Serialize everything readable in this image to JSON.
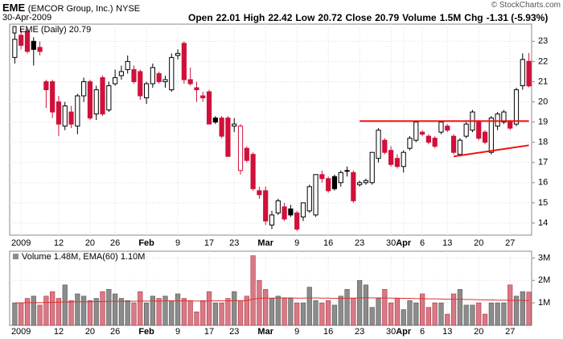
{
  "chart_data": {
    "type": "candlestick",
    "symbol": "EME",
    "company": "(EMCOR Group, Inc.)",
    "exchange": "NYSE",
    "date": "30-Apr-2009",
    "copyright": "© StockCharts.com",
    "quote": [
      {
        "label": "Open",
        "value": "22.01"
      },
      {
        "label": "High",
        "value": "22.42"
      },
      {
        "label": "Low",
        "value": "20.72"
      },
      {
        "label": "Close",
        "value": "20.79"
      },
      {
        "label": "Volume",
        "value": "1.5M"
      },
      {
        "label": "Chg",
        "value": "-1.31 (-5.93%)"
      }
    ],
    "legend": "EME (Daily) 20.79",
    "volume_legend": "Volume 1.48M, EMA(60) 1.10M",
    "categories": [
      null,
      "2009",
      null,
      null,
      null,
      null,
      null,
      "12",
      null,
      null,
      null,
      null,
      "20",
      null,
      null,
      null,
      "26",
      null,
      null,
      null,
      null,
      "Feb",
      null,
      null,
      null,
      null,
      "9",
      null,
      null,
      null,
      null,
      "17",
      null,
      null,
      null,
      "23",
      null,
      null,
      null,
      null,
      "Mar",
      null,
      null,
      null,
      null,
      "9",
      null,
      null,
      null,
      null,
      "16",
      null,
      null,
      null,
      null,
      "23",
      null,
      null,
      null,
      null,
      "30",
      null,
      "Apr",
      null,
      null,
      "6",
      null,
      null,
      null,
      "13",
      null,
      null,
      null,
      null,
      "20",
      null,
      null,
      null,
      null,
      "27",
      null,
      null,
      null
    ],
    "ohlc": [
      [
        22.2,
        23.4,
        21.9,
        23.1
      ],
      [
        23.3,
        23.6,
        22.6,
        22.8
      ],
      [
        23.5,
        23.6,
        22.4,
        22.5
      ],
      [
        23.0,
        23.2,
        21.8,
        22.6
      ],
      [
        22.7,
        23.0,
        22.3,
        22.5
      ],
      [
        21.0,
        21.1,
        19.7,
        20.6
      ],
      [
        21.0,
        21.1,
        19.2,
        19.5
      ],
      [
        20.0,
        20.3,
        18.3,
        18.9
      ],
      [
        18.8,
        20.0,
        18.6,
        19.8
      ],
      [
        19.5,
        19.8,
        18.7,
        18.9
      ],
      [
        18.8,
        20.4,
        18.4,
        20.3
      ],
      [
        20.3,
        21.2,
        20.0,
        21.0
      ],
      [
        21.0,
        21.1,
        19.1,
        19.2
      ],
      [
        19.4,
        20.8,
        19.1,
        20.6
      ],
      [
        21.2,
        21.3,
        19.3,
        19.4
      ],
      [
        19.6,
        21.0,
        19.5,
        20.8
      ],
      [
        20.9,
        21.6,
        20.8,
        21.2
      ],
      [
        21.3,
        21.8,
        21.1,
        21.5
      ],
      [
        21.6,
        22.3,
        21.4,
        22.0
      ],
      [
        21.6,
        21.8,
        20.9,
        21.0
      ],
      [
        21.5,
        21.6,
        20.1,
        20.3
      ],
      [
        20.2,
        21.0,
        19.9,
        20.9
      ],
      [
        20.9,
        21.9,
        20.7,
        21.7
      ],
      [
        21.4,
        21.5,
        20.9,
        21.0
      ],
      [
        21.0,
        21.3,
        20.7,
        21.1
      ],
      [
        20.6,
        22.4,
        20.5,
        22.2
      ],
      [
        22.3,
        22.6,
        22.1,
        22.4
      ],
      [
        22.9,
        23.0,
        20.9,
        21.1
      ],
      [
        21.1,
        21.7,
        20.8,
        20.9
      ],
      [
        20.7,
        21.0,
        20.0,
        20.6
      ],
      [
        20.3,
        20.5,
        20.0,
        20.2
      ],
      [
        20.5,
        20.6,
        18.9,
        18.9
      ],
      [
        19.2,
        19.3,
        18.9,
        19.0
      ],
      [
        19.2,
        19.3,
        18.2,
        18.3
      ],
      [
        19.2,
        19.3,
        17.3,
        17.3
      ],
      [
        18.8,
        19.2,
        18.5,
        18.9
      ],
      [
        16.6,
        18.9,
        16.4,
        18.8
      ],
      [
        17.7,
        17.8,
        17.0,
        17.1
      ],
      [
        17.4,
        17.5,
        15.6,
        15.7
      ],
      [
        15.6,
        15.8,
        15.2,
        15.4
      ],
      [
        15.6,
        15.8,
        13.9,
        14.1
      ],
      [
        13.9,
        14.6,
        13.7,
        14.4
      ],
      [
        14.5,
        15.2,
        14.4,
        15.1
      ],
      [
        14.8,
        15.0,
        14.1,
        14.2
      ],
      [
        14.7,
        14.9,
        14.3,
        14.4
      ],
      [
        14.5,
        14.6,
        13.6,
        13.7
      ],
      [
        14.3,
        15.0,
        14.1,
        15.0
      ],
      [
        14.6,
        15.9,
        14.5,
        15.8
      ],
      [
        14.4,
        16.4,
        14.3,
        16.4
      ],
      [
        16.4,
        16.6,
        16.0,
        16.2
      ],
      [
        16.2,
        16.3,
        15.5,
        15.6
      ],
      [
        16.3,
        16.4,
        15.6,
        15.7
      ],
      [
        16.0,
        16.6,
        15.8,
        16.5
      ],
      [
        16.6,
        16.8,
        16.3,
        16.6
      ],
      [
        16.5,
        16.6,
        15.0,
        15.1
      ],
      [
        15.9,
        16.1,
        15.8,
        16.0
      ],
      [
        16.0,
        16.2,
        15.9,
        16.1
      ],
      [
        16.0,
        17.5,
        15.9,
        17.5
      ],
      [
        17.2,
        18.7,
        17.0,
        18.6
      ],
      [
        18.1,
        18.2,
        17.4,
        17.5
      ],
      [
        17.6,
        17.8,
        16.8,
        16.9
      ],
      [
        17.2,
        17.4,
        16.7,
        16.8
      ],
      [
        16.8,
        17.6,
        16.5,
        17.5
      ],
      [
        17.7,
        18.3,
        17.6,
        18.2
      ],
      [
        18.1,
        19.0,
        18.0,
        19.0
      ],
      [
        18.5,
        18.6,
        18.3,
        18.4
      ],
      [
        18.3,
        18.4,
        17.9,
        18.0
      ],
      [
        18.2,
        18.3,
        17.7,
        17.8
      ],
      [
        18.5,
        19.0,
        18.4,
        19.0
      ],
      [
        18.8,
        18.9,
        18.5,
        18.6
      ],
      [
        18.3,
        18.4,
        17.4,
        17.5
      ],
      [
        17.4,
        18.2,
        17.3,
        18.1
      ],
      [
        18.3,
        19.0,
        18.2,
        18.9
      ],
      [
        18.6,
        19.6,
        18.5,
        19.5
      ],
      [
        19.0,
        19.1,
        18.1,
        18.2
      ],
      [
        18.5,
        18.6,
        17.9,
        18.0
      ],
      [
        17.5,
        19.3,
        17.4,
        19.2
      ],
      [
        18.8,
        19.5,
        18.6,
        19.4
      ],
      [
        19.0,
        19.6,
        18.9,
        19.5
      ],
      [
        19.0,
        19.1,
        18.6,
        18.7
      ],
      [
        18.9,
        20.7,
        18.8,
        20.6
      ],
      [
        20.8,
        22.4,
        20.6,
        22.1
      ],
      [
        22.01,
        22.42,
        20.72,
        20.79
      ]
    ],
    "ylim": [
      13.4,
      23.85
    ],
    "yticks": [
      14,
      15,
      16,
      17,
      18,
      19,
      20,
      21,
      22,
      23
    ],
    "trendlines": [
      {
        "start": [
          55,
          19.05
        ],
        "end": [
          82,
          19.05
        ]
      },
      {
        "start": [
          70,
          17.3
        ],
        "end": [
          82,
          17.85
        ]
      }
    ],
    "volume": [
      1.0,
      1.0,
      1.2,
      1.3,
      0.9,
      1.3,
      1.5,
      1.2,
      1.8,
      1.1,
      1.4,
      1.3,
      1.1,
      1.2,
      1.5,
      1.6,
      1.4,
      1.2,
      1.1,
      1.0,
      1.5,
      1.0,
      1.3,
      1.2,
      1.3,
      1.1,
      1.4,
      1.2,
      1.1,
      0.6,
      1.1,
      1.5,
      1.0,
      1.0,
      1.2,
      1.5,
      1.1,
      1.3,
      3.1,
      2.0,
      1.6,
      1.2,
      1.3,
      1.2,
      1.2,
      1.0,
      1.0,
      1.7,
      1.1,
      1.0,
      1.1,
      0.9,
      1.3,
      1.6,
      1.2,
      2.0,
      1.8,
      0.8,
      1.2,
      1.6,
      1.0,
      1.2,
      0.7,
      1.1,
      1.0,
      1.4,
      0.8,
      1.0,
      1.0,
      0.5,
      1.4,
      1.6,
      0.9,
      0.9,
      1.0,
      0.5,
      1.0,
      1.0,
      1.0,
      1.8,
      1.3,
      1.5,
      1.48
    ],
    "volume_ema": [
      1.0,
      1.0,
      1.01,
      1.01,
      1.01,
      1.02,
      1.02,
      1.03,
      1.04,
      1.04,
      1.05,
      1.05,
      1.05,
      1.06,
      1.06,
      1.07,
      1.07,
      1.07,
      1.07,
      1.07,
      1.08,
      1.08,
      1.08,
      1.08,
      1.09,
      1.09,
      1.09,
      1.09,
      1.09,
      1.08,
      1.08,
      1.09,
      1.09,
      1.09,
      1.09,
      1.1,
      1.1,
      1.1,
      1.17,
      1.2,
      1.21,
      1.21,
      1.22,
      1.22,
      1.22,
      1.21,
      1.21,
      1.22,
      1.22,
      1.21,
      1.21,
      1.2,
      1.2,
      1.21,
      1.21,
      1.22,
      1.23,
      1.22,
      1.22,
      1.22,
      1.21,
      1.21,
      1.2,
      1.2,
      1.19,
      1.19,
      1.18,
      1.18,
      1.17,
      1.16,
      1.16,
      1.16,
      1.15,
      1.15,
      1.14,
      1.13,
      1.13,
      1.12,
      1.12,
      1.11,
      1.11,
      1.11,
      1.1
    ],
    "volume_ylim": [
      0,
      3.3
    ],
    "volume_yticks": [
      {
        "value": 1,
        "label": "1M"
      },
      {
        "value": 2,
        "label": "2M"
      },
      {
        "value": 3,
        "label": "3M"
      }
    ],
    "up_color": "#000000",
    "down_color": "#d0103a",
    "volume_up_color": "#8c8c8c",
    "volume_down_color": "#d87a86",
    "ema_color": "#e03030",
    "trendline_color": "#ee1111",
    "grid": true
  }
}
